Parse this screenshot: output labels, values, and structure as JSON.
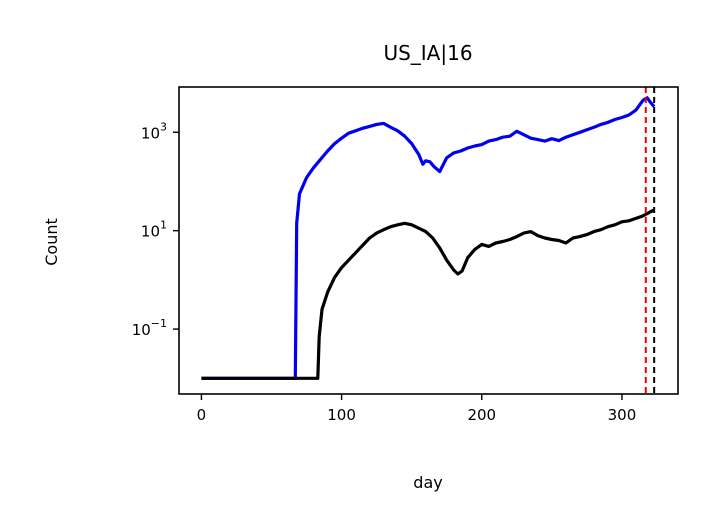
{
  "chart_data": {
    "type": "line",
    "title": "US_IA|16",
    "xlabel": "day",
    "ylabel": "Count",
    "xlim": [
      -16,
      340
    ],
    "ylim_log10": [
      -2.32,
      3.92
    ],
    "yscale": "log",
    "grid": false,
    "legend": "none",
    "x_ticks": [
      {
        "value": 0,
        "label": "0"
      },
      {
        "value": 100,
        "label": "100"
      },
      {
        "value": 200,
        "label": "200"
      },
      {
        "value": 300,
        "label": "300"
      }
    ],
    "y_ticks": [
      {
        "value_log10": 3,
        "base": "10",
        "exp": "3"
      },
      {
        "value_log10": 1,
        "base": "10",
        "exp": "1"
      },
      {
        "value_log10": -1,
        "base": "10",
        "exp": "−1"
      }
    ],
    "series": [
      {
        "color": "#0000ee",
        "x": [
          0,
          67,
          68,
          70,
          75,
          80,
          85,
          90,
          95,
          100,
          105,
          110,
          115,
          120,
          125,
          130,
          135,
          140,
          145,
          150,
          155,
          158,
          160,
          163,
          166,
          170,
          175,
          180,
          185,
          190,
          195,
          200,
          205,
          210,
          215,
          220,
          225,
          230,
          235,
          240,
          245,
          250,
          255,
          260,
          265,
          270,
          275,
          280,
          285,
          290,
          295,
          300,
          305,
          310,
          315,
          318,
          320,
          323
        ],
        "log10y": [
          -2.0,
          -2.0,
          1.15,
          1.75,
          2.08,
          2.28,
          2.45,
          2.62,
          2.77,
          2.88,
          2.98,
          3.03,
          3.08,
          3.12,
          3.16,
          3.18,
          3.1,
          3.03,
          2.92,
          2.77,
          2.55,
          2.35,
          2.42,
          2.4,
          2.3,
          2.2,
          2.48,
          2.58,
          2.62,
          2.68,
          2.72,
          2.75,
          2.82,
          2.85,
          2.9,
          2.92,
          3.02,
          2.95,
          2.88,
          2.85,
          2.82,
          2.87,
          2.83,
          2.9,
          2.95,
          3.0,
          3.05,
          3.1,
          3.16,
          3.2,
          3.26,
          3.3,
          3.35,
          3.45,
          3.65,
          3.7,
          3.62,
          3.52
        ]
      },
      {
        "color": "#000000",
        "x": [
          0,
          83,
          84,
          86,
          90,
          95,
          100,
          105,
          110,
          115,
          120,
          125,
          130,
          135,
          140,
          145,
          150,
          155,
          160,
          165,
          170,
          175,
          180,
          183,
          186,
          190,
          195,
          200,
          205,
          210,
          215,
          220,
          225,
          230,
          235,
          240,
          245,
          250,
          255,
          260,
          265,
          270,
          275,
          280,
          285,
          290,
          295,
          300,
          305,
          310,
          315,
          320,
          323
        ],
        "log10y": [
          -2.0,
          -2.0,
          -1.15,
          -0.6,
          -0.25,
          0.05,
          0.25,
          0.4,
          0.55,
          0.7,
          0.85,
          0.95,
          1.02,
          1.08,
          1.12,
          1.15,
          1.12,
          1.05,
          0.98,
          0.85,
          0.65,
          0.4,
          0.2,
          0.12,
          0.18,
          0.45,
          0.62,
          0.72,
          0.68,
          0.75,
          0.78,
          0.82,
          0.88,
          0.95,
          0.98,
          0.9,
          0.85,
          0.82,
          0.8,
          0.75,
          0.85,
          0.88,
          0.92,
          0.98,
          1.02,
          1.08,
          1.12,
          1.18,
          1.2,
          1.25,
          1.3,
          1.38,
          1.42
        ]
      }
    ],
    "vlines": [
      {
        "x": 317,
        "color": "#ee0000",
        "style": "dashed"
      },
      {
        "x": 323,
        "color": "#000000",
        "style": "dashed"
      }
    ]
  }
}
